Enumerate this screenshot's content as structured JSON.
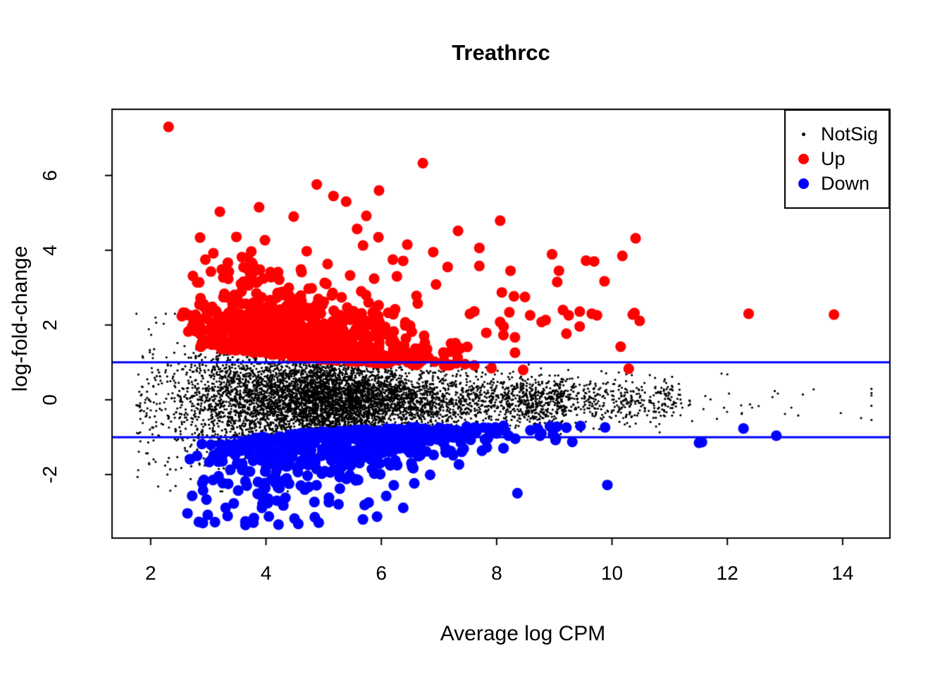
{
  "chart_data": {
    "type": "scatter",
    "title": "Treathrcc",
    "xlabel": "Average log CPM",
    "ylabel": "log-fold-change",
    "xlim": [
      1.33,
      14.82
    ],
    "ylim": [
      -3.7,
      7.77
    ],
    "x_ticks": [
      2,
      4,
      6,
      8,
      10,
      12,
      14
    ],
    "y_ticks": [
      -2,
      0,
      2,
      4,
      6
    ],
    "grid": false,
    "hlines": {
      "values": [
        1,
        -1
      ],
      "color": "#0000FF",
      "width": 3
    },
    "colors": {
      "up": "#FF0000",
      "down": "#0000FF",
      "notsig": "#000000",
      "axis": "#000000",
      "background": "#FFFFFF"
    },
    "legend": {
      "position": "top-right",
      "border": true,
      "items": [
        {
          "label": "NotSig",
          "series": "NotSig"
        },
        {
          "label": "Up",
          "series": "Up"
        },
        {
          "label": "Down",
          "series": "Down"
        }
      ]
    },
    "series": [
      {
        "name": "NotSig",
        "color": "#000000",
        "marker_radius": 1.6,
        "count": 6800,
        "seed": 101,
        "gen": "notsig",
        "params": {
          "halo_p": 0.03,
          "halo_lo": 1.75,
          "halo_hi": 2.55,
          "main_p": 0.72,
          "main_base": 2.38,
          "main_gauss": 1.15,
          "main_uni": 2.9,
          "mid_p": 0.92,
          "mid_lo": 4.6,
          "mid_hi": 9.2,
          "right_p": 0.975,
          "right_lo": 8.5,
          "right_hi": 11.2,
          "tail_base": 8.0,
          "tail_mean": 1.8,
          "tail_max": 14.5,
          "sd_base": 0.25,
          "sd_amp": 0.72,
          "sd_decay": 3.0,
          "lowx_limit": 4.7,
          "out_p": 0.06,
          "out_mult": 1.9,
          "clamp_lo": -2.45,
          "clamp_hi": 2.3,
          "inner_clamp": 0.95
        },
        "extras": [
          [
            14.32,
            -0.49
          ],
          [
            11.9,
            0.7
          ],
          [
            12.0,
            0.68
          ],
          [
            11.22,
            -0.21
          ],
          [
            11.33,
            -0.15
          ],
          [
            11.39,
            -0.57
          ],
          [
            11.82,
            -0.51
          ],
          [
            12.25,
            -0.38
          ],
          [
            12.43,
            -0.21
          ],
          [
            13.0,
            -0.38
          ],
          [
            13.11,
            -0.21
          ],
          [
            13.23,
            -0.42
          ],
          [
            2.13,
            -2.32
          ],
          [
            1.79,
            -0.9
          ],
          [
            1.85,
            0.35
          ]
        ]
      },
      {
        "name": "Up",
        "color": "#FF0000",
        "marker_radius": 7.6,
        "count": 800,
        "seed": 202,
        "gen": "up",
        "params": {
          "x_base": 2.45,
          "x_gauss": 1.35,
          "x_uni": 2.4,
          "x_max": 10.55,
          "env1_a": 1.9,
          "env1_b": -0.17,
          "env2_a": 1.45,
          "env2_b": -0.08,
          "env_min": 0.67,
          "m_base": 0.2,
          "m_amp": 1.05,
          "m_decay": 3.6,
          "m_x0": 2.5,
          "y_max": 4.45
        },
        "extras": [
          [
            2.31,
            7.3
          ],
          [
            6.72,
            6.33
          ],
          [
            4.88,
            5.76
          ],
          [
            5.96,
            5.6
          ],
          [
            5.17,
            5.45
          ],
          [
            5.39,
            5.3
          ],
          [
            3.88,
            5.15
          ],
          [
            3.2,
            5.03
          ],
          [
            4.48,
            4.9
          ],
          [
            5.74,
            4.92
          ],
          [
            5.58,
            4.57
          ],
          [
            7.33,
            4.52
          ],
          [
            8.06,
            4.79
          ],
          [
            7.7,
            4.06
          ],
          [
            7.7,
            3.58
          ],
          [
            10.41,
            4.32
          ],
          [
            10.18,
            3.85
          ],
          [
            8.96,
            3.89
          ],
          [
            9.55,
            3.72
          ],
          [
            9.69,
            3.7
          ],
          [
            8.24,
            3.45
          ],
          [
            9.08,
            3.45
          ],
          [
            9.05,
            3.15
          ],
          [
            9.87,
            3.17
          ],
          [
            8.09,
            2.87
          ],
          [
            8.3,
            2.77
          ],
          [
            8.49,
            2.75
          ],
          [
            8.22,
            2.34
          ],
          [
            8.58,
            2.26
          ],
          [
            9.15,
            2.4
          ],
          [
            9.25,
            2.26
          ],
          [
            9.44,
            2.36
          ],
          [
            9.65,
            2.3
          ],
          [
            9.74,
            2.26
          ],
          [
            10.36,
            2.28
          ],
          [
            10.48,
            2.11
          ],
          [
            8.78,
            2.08
          ],
          [
            8.85,
            2.13
          ],
          [
            8.06,
            2.08
          ],
          [
            8.12,
            1.96
          ],
          [
            7.82,
            1.79
          ],
          [
            9.21,
            1.77
          ],
          [
            9.44,
            1.96
          ],
          [
            12.37,
            2.3
          ],
          [
            13.85,
            2.28
          ],
          [
            10.39,
            2.32
          ],
          [
            10.15,
            1.42
          ],
          [
            10.29,
            0.83
          ],
          [
            5.95,
            4.35
          ],
          [
            6.45,
            4.15
          ],
          [
            6.9,
            3.95
          ],
          [
            7.15,
            3.55
          ],
          [
            6.2,
            3.75
          ]
        ]
      },
      {
        "name": "Down",
        "color": "#0000FF",
        "marker_radius": 7.6,
        "count": 580,
        "seed": 303,
        "gen": "down",
        "params": {
          "x_base": 2.6,
          "x_gauss": 1.5,
          "x_uni": 3.2,
          "x_max": 11.4,
          "top_base": -0.6,
          "top_amp": 0.55,
          "top_decay": 2.5,
          "top_x0": 3.0,
          "m_base": 0.15,
          "m_amp": 0.85,
          "m_decay": 3.0,
          "m_x0": 2.5,
          "y_min": -3.35
        },
        "extras": [
          [
            4.56,
            -3.32
          ],
          [
            2.99,
            -3.08
          ],
          [
            3.3,
            -2.89
          ],
          [
            3.93,
            -2.89
          ],
          [
            2.72,
            -2.57
          ],
          [
            4.19,
            -2.7
          ],
          [
            5.09,
            -2.74
          ],
          [
            5.78,
            -2.75
          ],
          [
            6.38,
            -2.89
          ],
          [
            8.36,
            -2.5
          ],
          [
            9.92,
            -2.28
          ],
          [
            11.56,
            -1.13
          ],
          [
            11.51,
            -1.15
          ],
          [
            12.28,
            -0.77
          ],
          [
            12.85,
            -0.96
          ],
          [
            4.05,
            -3.12
          ]
        ]
      }
    ]
  }
}
